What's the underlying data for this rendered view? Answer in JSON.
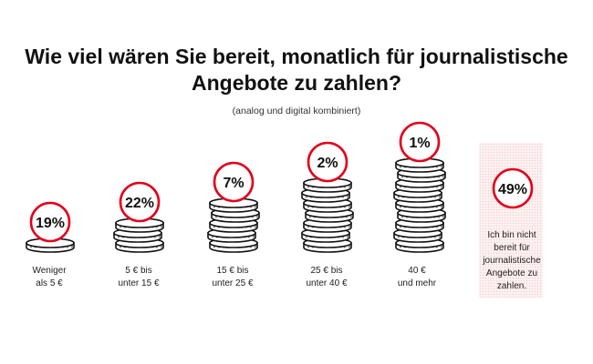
{
  "title": "Wie viel wären Sie bereit, monatlich für journalistische Angebote zu zahlen?",
  "subtitle": "(analog und digital kombiniert)",
  "colors": {
    "accent": "#e3001b",
    "coin_stroke": "#111111",
    "highlight_bg": "#fdf3f3"
  },
  "chart_data": {
    "type": "bar",
    "title": "Wie viel wären Sie bereit, monatlich für journalistische Angebote zu zahlen?",
    "subtitle": "(analog und digital kombiniert)",
    "categories": [
      "Weniger als 5 €",
      "5 € bis unter 15 €",
      "15 € bis unter 25 €",
      "25 € bis unter 40 €",
      "40 € und mehr",
      "Ich bin nicht bereit für journalistische Angebote zu zahlen."
    ],
    "values": [
      19,
      22,
      7,
      2,
      1,
      49
    ],
    "unit": "%",
    "value_labels": [
      "19%",
      "22%",
      "7%",
      "2%",
      "1%",
      "49%"
    ],
    "coin_stacks": [
      1,
      3,
      5,
      7,
      9,
      0
    ],
    "highlighted_category": "Ich bin nicht bereit für journalistische Angebote zu zahlen."
  },
  "labels": {
    "c0": [
      "Weniger",
      "als 5 €"
    ],
    "c1": [
      "5 € bis",
      "unter 15 €"
    ],
    "c2": [
      "15 € bis",
      "unter 25 €"
    ],
    "c3": [
      "25 € bis",
      "unter 40 €"
    ],
    "c4": [
      "40 €",
      "und mehr"
    ],
    "c5": [
      "Ich bin nicht",
      "bereit für",
      "journalistische",
      "Angebote zu",
      "zahlen."
    ]
  }
}
